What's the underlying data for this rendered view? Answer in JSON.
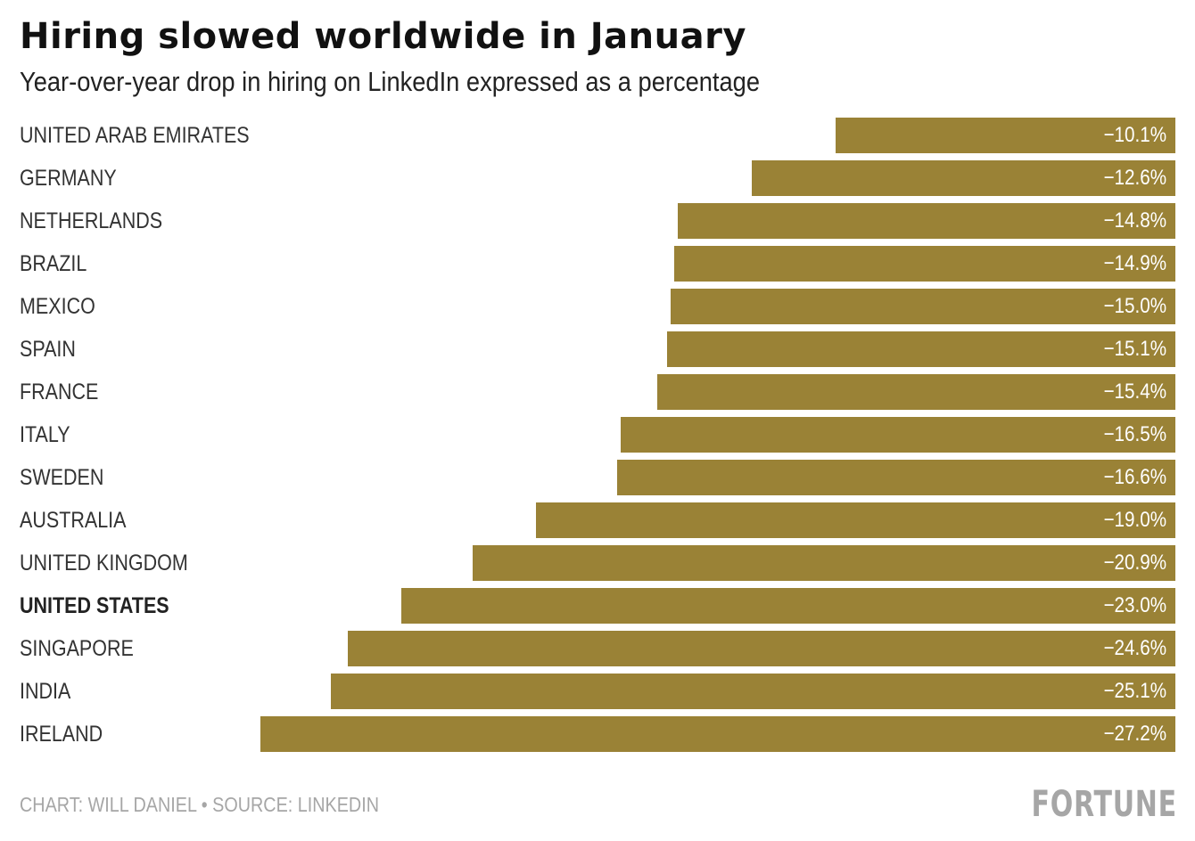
{
  "chart_data": {
    "type": "bar",
    "orientation": "horizontal",
    "title": "Hiring slowed worldwide in January",
    "subtitle": "Year-over-year drop in hiring on LinkedIn expressed as a percentage",
    "categories": [
      "UNITED ARAB EMIRATES",
      "GERMANY",
      "NETHERLANDS",
      "BRAZIL",
      "MEXICO",
      "SPAIN",
      "FRANCE",
      "ITALY",
      "SWEDEN",
      "AUSTRALIA",
      "UNITED KINGDOM",
      "UNITED STATES",
      "SINGAPORE",
      "INDIA",
      "IRELAND"
    ],
    "values": [
      -10.1,
      -12.6,
      -14.8,
      -14.9,
      -15.0,
      -15.1,
      -15.4,
      -16.5,
      -16.6,
      -19.0,
      -20.9,
      -23.0,
      -24.6,
      -25.1,
      -27.2
    ],
    "data_labels": [
      "−10.1%",
      "−12.6%",
      "−14.8%",
      "−14.9%",
      "−15.0%",
      "−15.1%",
      "−15.4%",
      "−16.5%",
      "−16.6%",
      "−19.0%",
      "−20.9%",
      "−23.0%",
      "−24.6%",
      "−25.1%",
      "−27.2%"
    ],
    "highlighted_category": "UNITED STATES",
    "bar_color": "#9a8236",
    "xlim": [
      -27.2,
      0
    ],
    "grid": false,
    "legend": "none"
  },
  "footer": {
    "credit": "CHART: WILL DANIEL • SOURCE: LINKEDIN",
    "logo": "FORTUNE"
  }
}
